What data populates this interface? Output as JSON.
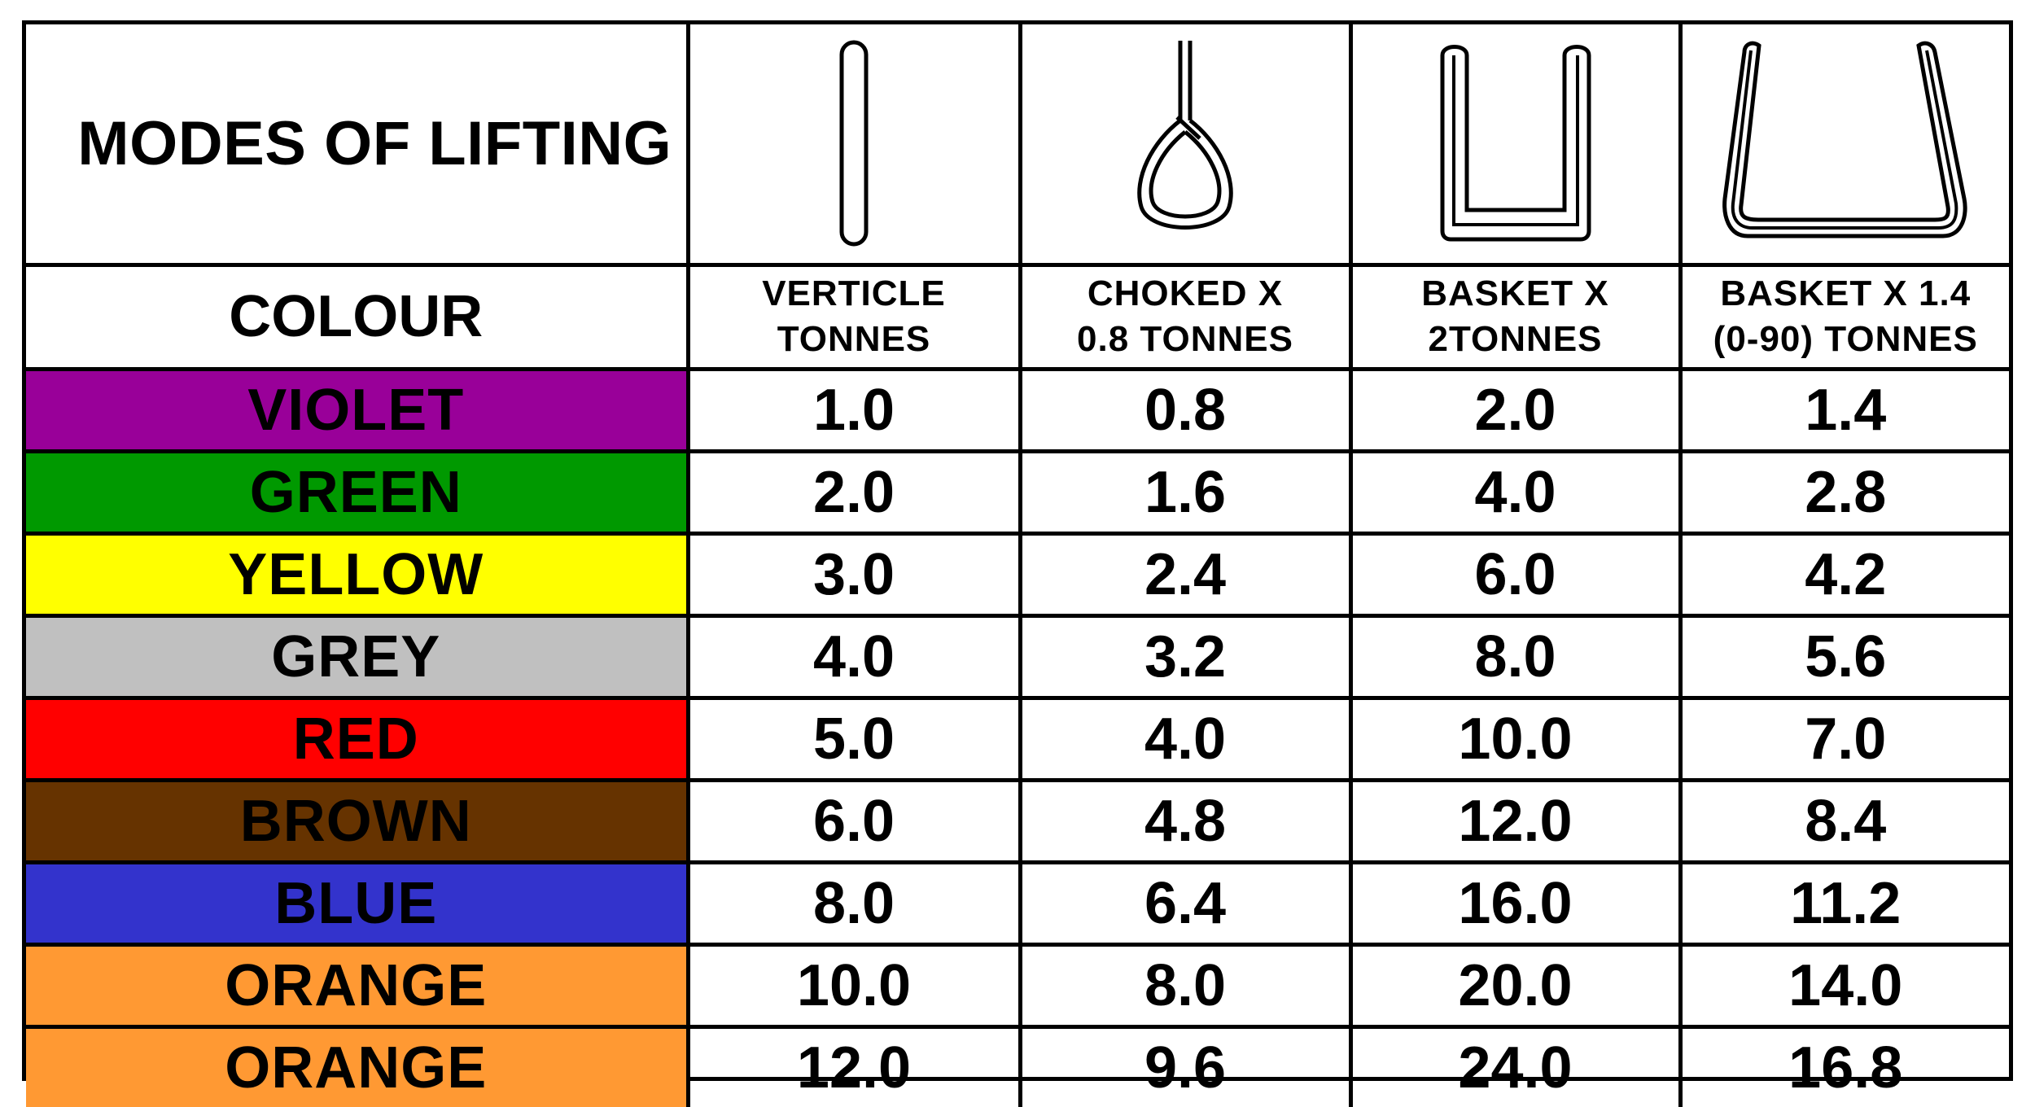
{
  "title": "MODES OF LIFTING",
  "colour_header": "COLOUR",
  "modes": [
    {
      "icon": "vertical-sling-icon",
      "line1": "VERTICLE",
      "line2": "TONNES"
    },
    {
      "icon": "choked-sling-icon",
      "line1": "CHOKED X",
      "line2": "0.8 TONNES"
    },
    {
      "icon": "basket-sling-icon",
      "line1": "BASKET X",
      "line2": "2TONNES"
    },
    {
      "icon": "angled-basket-sling-icon",
      "line1": "BASKET X 1.4",
      "line2": "(0-90) TONNES"
    }
  ],
  "rows": [
    {
      "colour": "VIOLET",
      "color_hex": "#990099",
      "values": [
        "1.0",
        "0.8",
        "2.0",
        "1.4"
      ]
    },
    {
      "colour": "GREEN",
      "color_hex": "#009900",
      "values": [
        "2.0",
        "1.6",
        "4.0",
        "2.8"
      ]
    },
    {
      "colour": "YELLOW",
      "color_hex": "#ffff00",
      "values": [
        "3.0",
        "2.4",
        "6.0",
        "4.2"
      ]
    },
    {
      "colour": "GREY",
      "color_hex": "#c0c0c0",
      "values": [
        "4.0",
        "3.2",
        "8.0",
        "5.6"
      ]
    },
    {
      "colour": "RED",
      "color_hex": "#ff0000",
      "values": [
        "5.0",
        "4.0",
        "10.0",
        "7.0"
      ]
    },
    {
      "colour": "BROWN",
      "color_hex": "#663300",
      "values": [
        "6.0",
        "4.8",
        "12.0",
        "8.4"
      ]
    },
    {
      "colour": "BLUE",
      "color_hex": "#3333cc",
      "values": [
        "8.0",
        "6.4",
        "16.0",
        "11.2"
      ]
    },
    {
      "colour": "ORANGE",
      "color_hex": "#ff9933",
      "values": [
        "10.0",
        "8.0",
        "20.0",
        "14.0"
      ]
    },
    {
      "colour": "ORANGE",
      "color_hex": "#ff9933",
      "values": [
        "12.0",
        "9.6",
        "24.0",
        "16.8"
      ]
    }
  ]
}
